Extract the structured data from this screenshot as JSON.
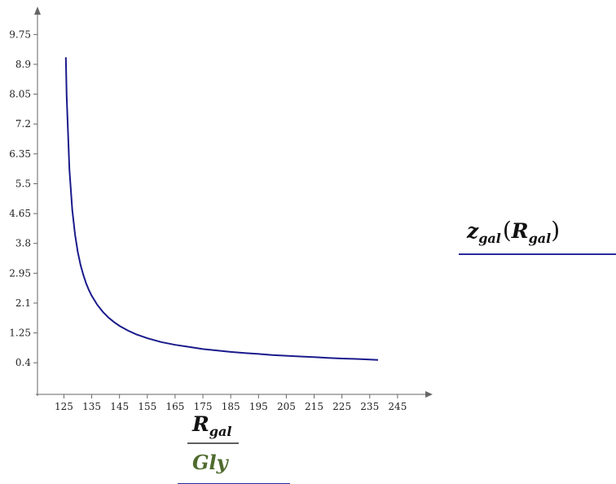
{
  "colors": {
    "curve": "#1a1a8c",
    "axis": "#666666",
    "divider": "#2b2b2b",
    "unit": "#4f6b2e",
    "underline": "#2a2a9a"
  },
  "x_axis_label": {
    "main": "R",
    "sub": "gal",
    "unit": "Gly"
  },
  "legend_label": {
    "func": "z",
    "func_sub": "gal",
    "open": "(",
    "arg": "R",
    "arg_sub": "gal",
    "close": ")"
  },
  "chart_data": {
    "type": "line",
    "series": [
      {
        "name": "z_gal(R_gal)",
        "x": [
          125.7,
          126,
          127,
          128,
          129,
          130,
          131,
          132,
          133,
          134,
          135,
          137,
          139,
          141,
          143,
          145,
          148,
          151,
          155,
          160,
          165,
          170,
          175,
          180,
          185,
          190,
          195,
          200,
          205,
          210,
          215,
          220,
          225,
          230,
          235,
          238
        ],
        "y": [
          9.1,
          8.0,
          5.9,
          4.75,
          4.05,
          3.55,
          3.18,
          2.9,
          2.66,
          2.47,
          2.31,
          2.05,
          1.85,
          1.69,
          1.56,
          1.45,
          1.32,
          1.21,
          1.1,
          0.99,
          0.91,
          0.85,
          0.79,
          0.75,
          0.71,
          0.68,
          0.65,
          0.62,
          0.6,
          0.58,
          0.56,
          0.54,
          0.52,
          0.51,
          0.49,
          0.48
        ]
      }
    ],
    "x_ticks": [
      "125",
      "135",
      "145",
      "155",
      "165",
      "175",
      "185",
      "195",
      "205",
      "215",
      "225",
      "235",
      "245"
    ],
    "y_ticks": [
      "0.4",
      "1.25",
      "2.1",
      "2.95",
      "3.8",
      "4.65",
      "5.5",
      "6.35",
      "7.2",
      "8.05",
      "8.9",
      "9.75"
    ],
    "xlim": [
      115.5,
      255
    ],
    "ylim": [
      -0.5,
      10.5
    ],
    "grid": false,
    "legend": "right"
  }
}
